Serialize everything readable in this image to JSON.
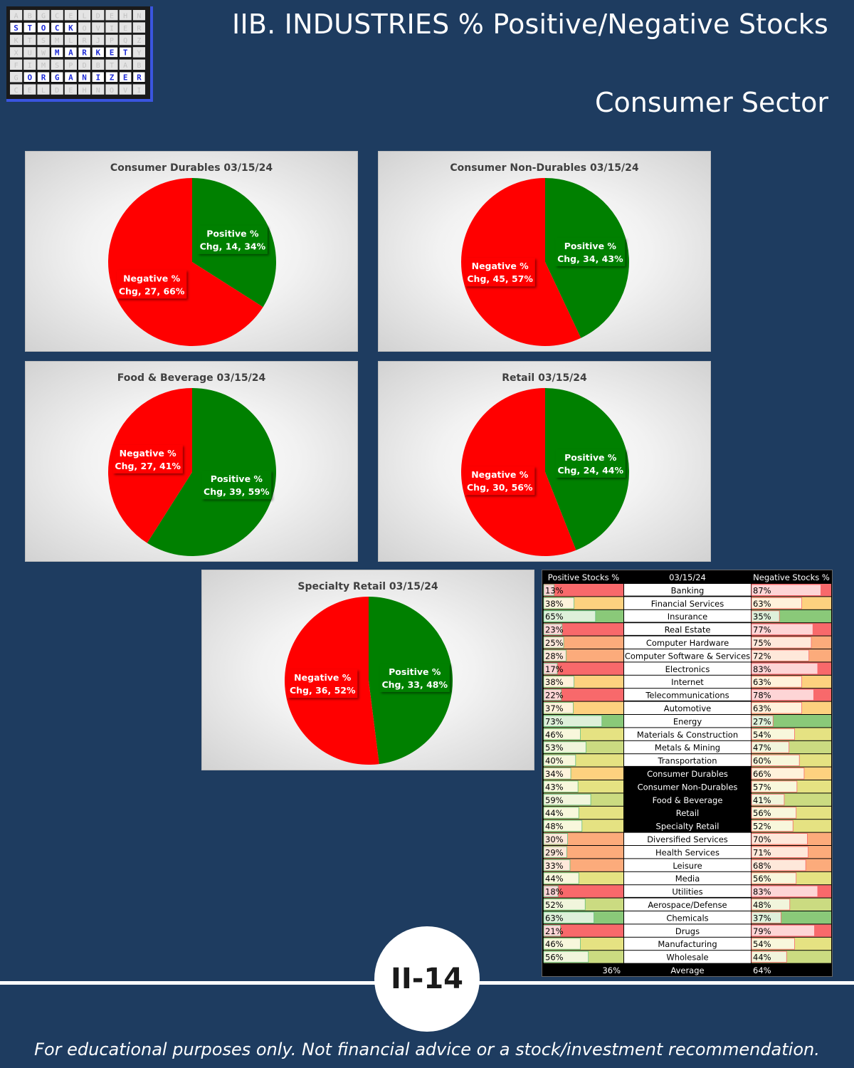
{
  "header": {
    "title": "IIB. INDUSTRIES % Positive/Negative Stocks",
    "subtitle": "Consumer Sector"
  },
  "logo": {
    "words": [
      "STOCK",
      "MARKET",
      "ORGANIZER"
    ],
    "filler_letters": "ABGCELDEHNOVIERKTSMLRJPQZXUWYFIMSPDBT",
    "colors": {
      "frame": "#1a1a1a",
      "border": "#3a55e0",
      "letters": "#1e2bd6"
    }
  },
  "colors": {
    "positive": "#008000",
    "negative": "#ff0000",
    "label_text": "#ffffff"
  },
  "chart_data": [
    {
      "type": "pie",
      "title": "Consumer Durables 03/15/24",
      "slices": [
        {
          "name": "Positive % Chg",
          "label_lines": [
            "Positive %",
            "Chg, 14, 34%"
          ],
          "count": 14,
          "percent": 34
        },
        {
          "name": "Negative % Chg",
          "label_lines": [
            "Negative %",
            "Chg, 27, 66%"
          ],
          "count": 27,
          "percent": 66
        }
      ]
    },
    {
      "type": "pie",
      "title": "Consumer Non-Durables 03/15/24",
      "slices": [
        {
          "name": "Positive % Chg",
          "label_lines": [
            "Positive %",
            "Chg, 34, 43%"
          ],
          "count": 34,
          "percent": 43
        },
        {
          "name": "Negative % Chg",
          "label_lines": [
            "Negative %",
            "Chg, 45, 57%"
          ],
          "count": 45,
          "percent": 57
        }
      ]
    },
    {
      "type": "pie",
      "title": "Food & Beverage 03/15/24",
      "slices": [
        {
          "name": "Positive % Chg",
          "label_lines": [
            "Positive %",
            "Chg, 39, 59%"
          ],
          "count": 39,
          "percent": 59
        },
        {
          "name": "Negative % Chg",
          "label_lines": [
            "Negative %",
            "Chg, 27, 41%"
          ],
          "count": 27,
          "percent": 41
        }
      ]
    },
    {
      "type": "pie",
      "title": "Retail 03/15/24",
      "slices": [
        {
          "name": "Positive % Chg",
          "label_lines": [
            "Positive %",
            "Chg, 24, 44%"
          ],
          "count": 24,
          "percent": 44
        },
        {
          "name": "Negative % Chg",
          "label_lines": [
            "Negative %",
            "Chg, 30, 56%"
          ],
          "count": 30,
          "percent": 56
        }
      ]
    },
    {
      "type": "pie",
      "title": "Specialty Retail 03/15/24",
      "slices": [
        {
          "name": "Positive % Chg",
          "label_lines": [
            "Positive %",
            "Chg, 33, 48%"
          ],
          "count": 33,
          "percent": 48
        },
        {
          "name": "Negative % Chg",
          "label_lines": [
            "Negative %",
            "Chg, 36, 52%"
          ],
          "count": 36,
          "percent": 52
        }
      ]
    },
    {
      "type": "table",
      "columns": [
        "Positive Stocks %",
        "03/15/24",
        "Negative Stocks %"
      ],
      "rows": [
        {
          "industry": "Banking",
          "positive": 13,
          "negative": 87
        },
        {
          "industry": "Financial Services",
          "positive": 38,
          "negative": 63
        },
        {
          "industry": "Insurance",
          "positive": 65,
          "negative": 35
        },
        {
          "industry": "Real Estate",
          "positive": 23,
          "negative": 77
        },
        {
          "industry": "Computer Hardware",
          "positive": 25,
          "negative": 75
        },
        {
          "industry": "Computer Software & Services",
          "positive": 28,
          "negative": 72
        },
        {
          "industry": "Electronics",
          "positive": 17,
          "negative": 83
        },
        {
          "industry": "Internet",
          "positive": 38,
          "negative": 63
        },
        {
          "industry": "Telecommunications",
          "positive": 22,
          "negative": 78
        },
        {
          "industry": "Automotive",
          "positive": 37,
          "negative": 63
        },
        {
          "industry": "Energy",
          "positive": 73,
          "negative": 27
        },
        {
          "industry": "Materials & Construction",
          "positive": 46,
          "negative": 54
        },
        {
          "industry": "Metals & Mining",
          "positive": 53,
          "negative": 47
        },
        {
          "industry": "Transportation",
          "positive": 40,
          "negative": 60
        },
        {
          "industry": "Consumer Durables",
          "positive": 34,
          "negative": 66,
          "highlight": true
        },
        {
          "industry": "Consumer Non-Durables",
          "positive": 43,
          "negative": 57,
          "highlight": true
        },
        {
          "industry": "Food & Beverage",
          "positive": 59,
          "negative": 41,
          "highlight": true
        },
        {
          "industry": "Retail",
          "positive": 44,
          "negative": 56,
          "highlight": true
        },
        {
          "industry": "Specialty Retail",
          "positive": 48,
          "negative": 52,
          "highlight": true
        },
        {
          "industry": "Diversified Services",
          "positive": 30,
          "negative": 70
        },
        {
          "industry": "Health Services",
          "positive": 29,
          "negative": 71
        },
        {
          "industry": "Leisure",
          "positive": 33,
          "negative": 68
        },
        {
          "industry": "Media",
          "positive": 44,
          "negative": 56
        },
        {
          "industry": "Utilities",
          "positive": 18,
          "negative": 83
        },
        {
          "industry": "Aerospace/Defense",
          "positive": 52,
          "negative": 48
        },
        {
          "industry": "Chemicals",
          "positive": 63,
          "negative": 37
        },
        {
          "industry": "Drugs",
          "positive": 21,
          "negative": 79
        },
        {
          "industry": "Manufacturing",
          "positive": 46,
          "negative": 54
        },
        {
          "industry": "Wholesale",
          "positive": 56,
          "negative": 44
        }
      ],
      "group_breaks_after": [
        "Banking",
        "Insurance",
        "Real Estate",
        "Telecommunications",
        "Transportation",
        "Utilities"
      ],
      "average": {
        "label": "Average",
        "positive": "36%",
        "negative": "64%"
      }
    }
  ],
  "footer": {
    "page_number": "II-14",
    "disclaimer": "For educational purposes only. Not financial advice or a stock/investment recommendation."
  }
}
